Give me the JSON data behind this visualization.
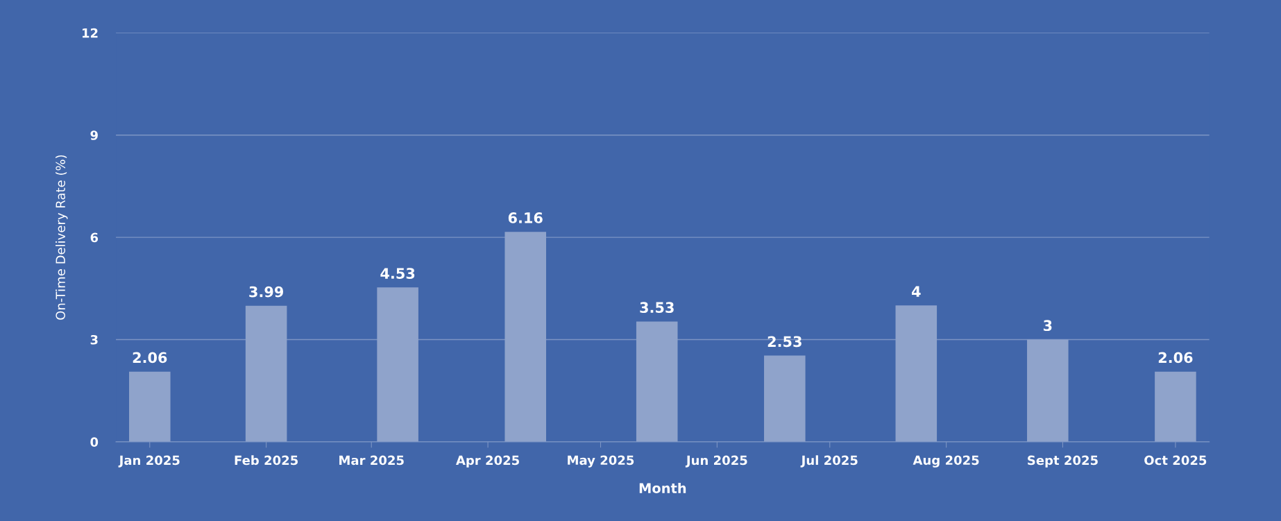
{
  "chart_data": {
    "type": "bar",
    "xlabel": "Month",
    "ylabel": "On-Time Delivery Rate (%)",
    "x": [
      "2025-01-01",
      "2025-02-01",
      "2025-03-08",
      "2025-04-11",
      "2025-05-16",
      "2025-06-19",
      "2025-07-24",
      "2025-08-28",
      "2025-10-01"
    ],
    "values": [
      2.06,
      3.99,
      4.53,
      6.16,
      3.53,
      2.53,
      4,
      3,
      2.06
    ],
    "color": "#8fa3cb",
    "data_labels": true,
    "ylim": [
      0,
      12
    ],
    "yticks": [
      0,
      3,
      6,
      9,
      12
    ],
    "xlim": [
      "2024-12-23",
      "2025-10-10"
    ],
    "xticks": [
      {
        "value": "2025-01-01",
        "label": "Jan 2025"
      },
      {
        "value": "2025-02-01",
        "label": "Feb 2025"
      },
      {
        "value": "2025-03-01",
        "label": "Mar 2025"
      },
      {
        "value": "2025-04-01",
        "label": "Apr 2025"
      },
      {
        "value": "2025-05-01",
        "label": "May 2025"
      },
      {
        "value": "2025-06-01",
        "label": "Jun 2025"
      },
      {
        "value": "2025-07-01",
        "label": "Jul 2025"
      },
      {
        "value": "2025-08-01",
        "label": "Aug 2025"
      },
      {
        "value": "2025-09-01",
        "label": "Sept 2025"
      },
      {
        "value": "2025-10-01",
        "label": "Oct 2025"
      }
    ],
    "grid": "y"
  }
}
